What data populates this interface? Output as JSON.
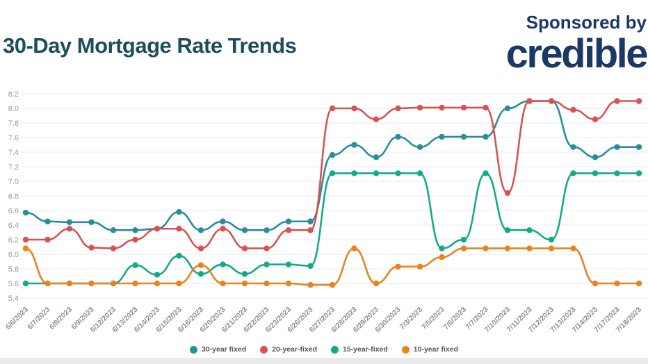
{
  "header": {
    "title": "30-Day Mortgage Rate Trends",
    "sponsored_by": "Sponsored by",
    "brand": "credible"
  },
  "colors": {
    "title": "#1d4d5c",
    "brand_navy": "#1b3866",
    "grid": "#e9e9e9",
    "axis_text": "#8f8f8f",
    "series_30yr": "#2b8c9a",
    "series_20yr": "#d95252",
    "series_15yr": "#14a98b",
    "series_10yr": "#ea831e"
  },
  "chart_data": {
    "type": "line",
    "title": "30-Day Mortgage Rate Trends",
    "xlabel": "",
    "ylabel": "",
    "ylim": [
      5.4,
      8.2
    ],
    "ytick_step": 0.2,
    "yticks": [
      "8.2",
      "8.0",
      "7.8",
      "7.6",
      "7.4",
      "7.2",
      "7.0",
      "6.8",
      "6.6",
      "6.4",
      "6.2",
      "6.0",
      "5.8",
      "5.6",
      "5.4"
    ],
    "grid": "horizontal",
    "legend_position": "bottom-center",
    "x": [
      "6/6/2023",
      "6/7/2023",
      "6/8/2023",
      "6/9/2023",
      "6/12/2023",
      "6/13/2023",
      "6/14/2023",
      "6/15/2023",
      "6/16/2023",
      "6/20/2023",
      "6/21/2023",
      "6/22/2023",
      "6/23/2023",
      "6/26/2023",
      "6/27/2023",
      "6/28/2023",
      "6/29/2023",
      "6/30/2023",
      "7/3/2023",
      "7/5/2023",
      "7/6/2023",
      "7/7/2023",
      "7/10/2023",
      "7/11/2023",
      "7/12/2023",
      "7/13/2023",
      "7/14/2023",
      "7/17/2023",
      "7/18/2023"
    ],
    "series": [
      {
        "name": "30-year fixed",
        "color": "#2b8c9a",
        "values": [
          6.57,
          6.45,
          6.44,
          6.44,
          6.33,
          6.33,
          6.35,
          6.58,
          6.33,
          6.45,
          6.33,
          6.33,
          6.45,
          6.45,
          7.36,
          7.5,
          7.33,
          7.61,
          7.47,
          7.61,
          7.61,
          7.61,
          8.0,
          8.1,
          8.1,
          7.47,
          7.33,
          7.47,
          7.47
        ]
      },
      {
        "name": "20-year-fixed",
        "color": "#d95252",
        "values": [
          6.2,
          6.2,
          6.35,
          6.09,
          6.08,
          6.2,
          6.35,
          6.35,
          6.08,
          6.35,
          6.08,
          6.08,
          6.33,
          6.33,
          8.0,
          8.0,
          7.85,
          8.0,
          8.01,
          8.01,
          8.01,
          8.01,
          6.84,
          8.1,
          8.1,
          7.98,
          7.85,
          8.1,
          8.1
        ]
      },
      {
        "name": "15-year-fixed",
        "color": "#14a98b",
        "values": [
          5.6,
          5.6,
          5.6,
          5.6,
          5.6,
          5.85,
          5.72,
          5.98,
          5.73,
          5.86,
          5.73,
          5.86,
          5.86,
          5.84,
          7.11,
          7.11,
          7.11,
          7.11,
          7.11,
          6.08,
          6.2,
          7.11,
          6.33,
          6.33,
          6.2,
          7.11,
          7.11,
          7.11,
          7.11
        ]
      },
      {
        "name": "10-year fixed",
        "color": "#ea831e",
        "values": [
          6.08,
          5.6,
          5.6,
          5.6,
          5.6,
          5.6,
          5.6,
          5.6,
          5.85,
          5.6,
          5.6,
          5.6,
          5.6,
          5.58,
          5.58,
          6.08,
          5.6,
          5.83,
          5.83,
          5.96,
          6.08,
          6.08,
          6.08,
          6.08,
          6.08,
          6.08,
          5.6,
          5.6,
          5.6
        ]
      }
    ]
  }
}
